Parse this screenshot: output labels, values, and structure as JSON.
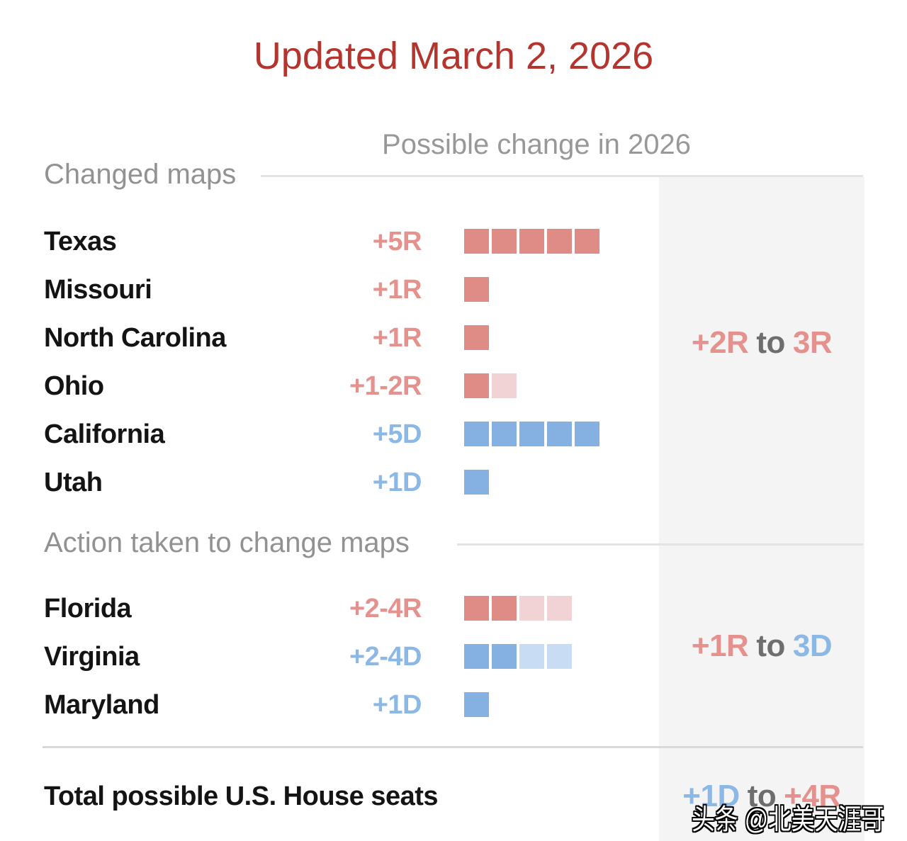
{
  "title": "Updated March 2, 2026",
  "column_header": "Possible change in 2026",
  "watermark": "头条 @北美天涯哥",
  "colors": {
    "title_red": "#b4342e",
    "republican_square": "#e08c86",
    "republican_square_light": "#f2d3d5",
    "republican_text": "#e5928e",
    "democrat_square": "#84b1e1",
    "democrat_square_light": "#c8ddf3",
    "democrat_text": "#8cb8e6",
    "heading_gray": "#929292",
    "to_gray": "#6e6e6e",
    "label_dark": "#141414",
    "panel_background": "#f4f4f4",
    "rule_gray": "#e3e3e3"
  },
  "chart_data": {
    "type": "bar",
    "title": "Updated March 2, 2026",
    "column_header": "Possible change in 2026",
    "unit": "U.S. House seats (one square = one seat; light square = possible additional seat)",
    "legend_position": "none",
    "sections": [
      {
        "label": "Changed maps",
        "rows": [
          {
            "state": "Texas",
            "value": "+5R",
            "party": "R",
            "seats_solid": 5,
            "seats_possible": 0
          },
          {
            "state": "Missouri",
            "value": "+1R",
            "party": "R",
            "seats_solid": 1,
            "seats_possible": 0
          },
          {
            "state": "North Carolina",
            "value": "+1R",
            "party": "R",
            "seats_solid": 1,
            "seats_possible": 0
          },
          {
            "state": "Ohio",
            "value": "+1-2R",
            "party": "R",
            "seats_solid": 1,
            "seats_possible": 1
          },
          {
            "state": "California",
            "value": "+5D",
            "party": "D",
            "seats_solid": 5,
            "seats_possible": 0
          },
          {
            "state": "Utah",
            "value": "+1D",
            "party": "D",
            "seats_solid": 1,
            "seats_possible": 0
          }
        ],
        "summary": [
          {
            "text": "+2R",
            "party": "R"
          },
          {
            "text": "to",
            "party": "N"
          },
          {
            "text": "3R",
            "party": "R"
          }
        ]
      },
      {
        "label": "Action taken to change maps",
        "rows": [
          {
            "state": "Florida",
            "value": "+2-4R",
            "party": "R",
            "seats_solid": 2,
            "seats_possible": 2
          },
          {
            "state": "Virginia",
            "value": "+2-4D",
            "party": "D",
            "seats_solid": 2,
            "seats_possible": 2
          },
          {
            "state": "Maryland",
            "value": "+1D",
            "party": "D",
            "seats_solid": 1,
            "seats_possible": 0
          }
        ],
        "summary": [
          {
            "text": "+1R",
            "party": "R"
          },
          {
            "text": "to",
            "party": "N"
          },
          {
            "text": "3D",
            "party": "D"
          }
        ]
      }
    ],
    "total": {
      "label": "Total possible U.S. House seats",
      "summary": [
        {
          "text": "+1D",
          "party": "D"
        },
        {
          "text": "to",
          "party": "N"
        },
        {
          "text": "+4R",
          "party": "R"
        }
      ]
    }
  }
}
